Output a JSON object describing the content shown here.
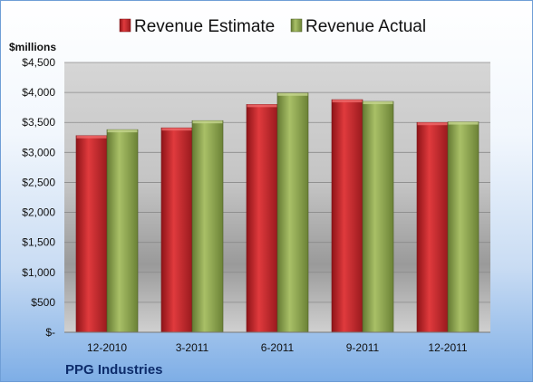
{
  "footer_title": "PPG Industries",
  "chart_data": {
    "type": "bar",
    "ylabel": "$millions",
    "categories": [
      "12-2010",
      "3-2011",
      "6-2011",
      "9-2011",
      "12-2011"
    ],
    "series": [
      {
        "name": "Revenue Estimate",
        "color": "#c9262a",
        "values": [
          3280,
          3410,
          3800,
          3880,
          3500
        ]
      },
      {
        "name": "Revenue Actual",
        "color": "#8fa84e",
        "values": [
          3380,
          3530,
          3990,
          3850,
          3510
        ]
      }
    ],
    "ylim": [
      0,
      4500
    ],
    "y_ticks": [
      0,
      500,
      1000,
      1500,
      2000,
      2500,
      3000,
      3500,
      4000,
      4500
    ],
    "y_tick_labels": [
      "$-",
      "$500",
      "$1,000",
      "$1,500",
      "$2,000",
      "$2,500",
      "$3,000",
      "$3,500",
      "$4,000",
      "$4,500"
    ],
    "legend_position": "top",
    "grid": true
  }
}
